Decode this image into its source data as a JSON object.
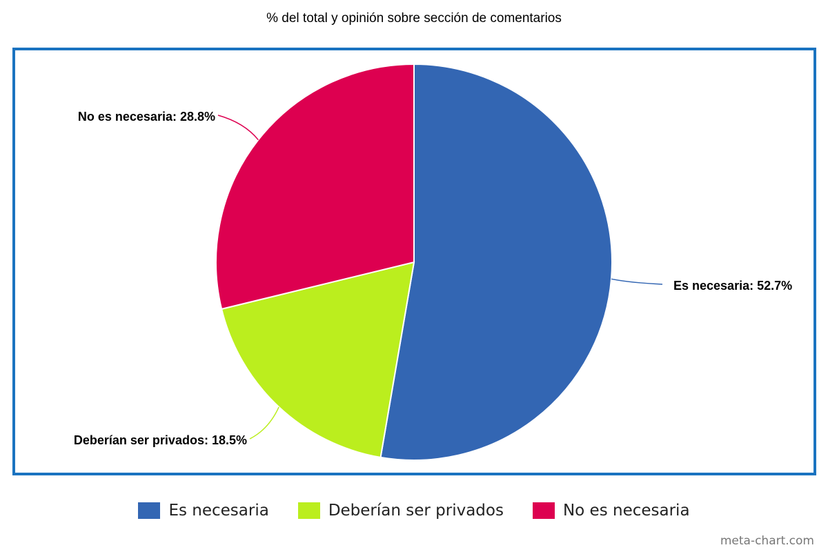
{
  "chart_data": {
    "type": "pie",
    "title": "% del total y opinión sobre sección de comentarios",
    "slices": [
      {
        "label": "Es necesaria",
        "value": 52.7,
        "color": "#3366b3",
        "data_label": "Es necesaria: 52.7%"
      },
      {
        "label": "Deberían ser privados",
        "value": 18.5,
        "color": "#bbee1e",
        "data_label": "Deberían ser privados: 18.5%"
      },
      {
        "label": "No es necesaria",
        "value": 28.8,
        "color": "#dd0050",
        "data_label": "No es necesaria: 28.8%"
      }
    ],
    "legend": {
      "placement": "bottom",
      "entries": [
        "Es necesaria",
        "Deberían ser privados",
        "No es necesaria"
      ]
    },
    "frame_color": "#1a73c0"
  },
  "watermark": "meta-chart.com"
}
